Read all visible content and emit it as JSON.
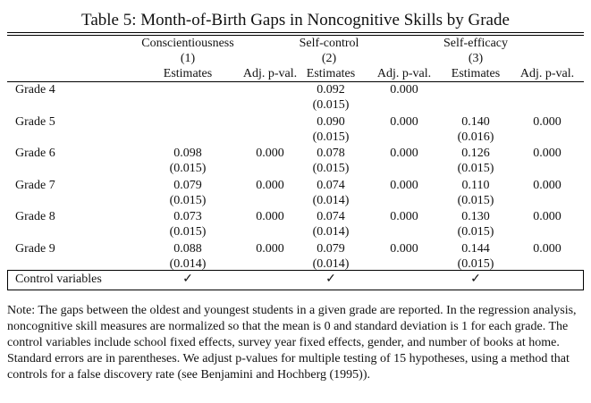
{
  "title": "Table 5: Month-of-Birth Gaps in Noncognitive Skills by Grade",
  "groups": [
    {
      "name": "Conscientiousness",
      "number": "(1)"
    },
    {
      "name": "Self-control",
      "number": "(2)"
    },
    {
      "name": "Self-efficacy",
      "number": "(3)"
    }
  ],
  "col_estimates": "Estimates",
  "col_adj": "Adj. p-val.",
  "rows": [
    {
      "label": "Grade 4",
      "c1": "",
      "c1se": "",
      "c2": "",
      "c3": "0.092",
      "c3se": "(0.015)",
      "c4": "0.000",
      "c5": "",
      "c5se": "",
      "c6": ""
    },
    {
      "label": "Grade 5",
      "c1": "",
      "c1se": "",
      "c2": "",
      "c3": "0.090",
      "c3se": "(0.015)",
      "c4": "0.000",
      "c5": "0.140",
      "c5se": "(0.016)",
      "c6": "0.000"
    },
    {
      "label": "Grade 6",
      "c1": "0.098",
      "c1se": "(0.015)",
      "c2": "0.000",
      "c3": "0.078",
      "c3se": "(0.015)",
      "c4": "0.000",
      "c5": "0.126",
      "c5se": "(0.015)",
      "c6": "0.000"
    },
    {
      "label": "Grade 7",
      "c1": "0.079",
      "c1se": "(0.015)",
      "c2": "0.000",
      "c3": "0.074",
      "c3se": "(0.014)",
      "c4": "0.000",
      "c5": "0.110",
      "c5se": "(0.015)",
      "c6": "0.000"
    },
    {
      "label": "Grade 8",
      "c1": "0.073",
      "c1se": "(0.015)",
      "c2": "0.000",
      "c3": "0.074",
      "c3se": "(0.014)",
      "c4": "0.000",
      "c5": "0.130",
      "c5se": "(0.015)",
      "c6": "0.000"
    },
    {
      "label": "Grade 9",
      "c1": "0.088",
      "c1se": "(0.014)",
      "c2": "0.000",
      "c3": "0.079",
      "c3se": "(0.014)",
      "c4": "0.000",
      "c5": "0.144",
      "c5se": "(0.015)",
      "c6": "0.000"
    }
  ],
  "controls": {
    "label": "Control variables",
    "mark": "✓"
  },
  "note": "Note: The gaps between the oldest and youngest students in a given grade are reported. In the regression analysis, noncognitive skill measures are normalized so that the mean is 0 and standard deviation is 1 for each grade. The control variables include school fixed effects, survey year fixed effects, gender, and number of books at home. Standard errors are in parentheses. We adjust p-values for multiple testing of 15 hypotheses, using a method that controls for a false discovery rate (see Benjamini and Hochberg (1995))."
}
